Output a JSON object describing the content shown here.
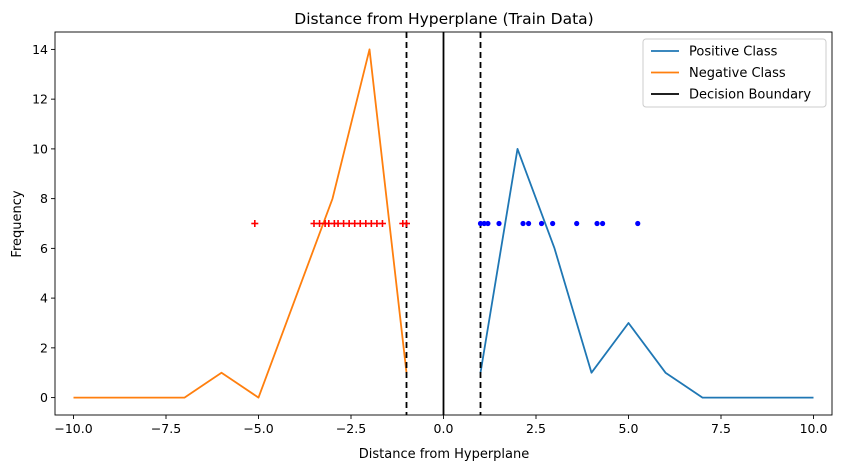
{
  "chart_data": {
    "type": "line",
    "title": "Distance from Hyperplane (Train Data)",
    "xlabel": "Distance from Hyperplane",
    "ylabel": "Frequency",
    "xlim": [
      -10.5,
      10.5
    ],
    "ylim": [
      -0.7,
      14.7
    ],
    "xticks": [
      -10.0,
      -7.5,
      -5.0,
      -2.5,
      0.0,
      2.5,
      5.0,
      7.5,
      10.0
    ],
    "xtick_labels": [
      "−10.0",
      "−7.5",
      "−5.0",
      "−2.5",
      "0.0",
      "2.5",
      "5.0",
      "7.5",
      "10.0"
    ],
    "yticks": [
      0,
      2,
      4,
      6,
      8,
      10,
      12,
      14
    ],
    "ytick_labels": [
      "0",
      "2",
      "4",
      "6",
      "8",
      "10",
      "12",
      "14"
    ],
    "grid": false,
    "legend_position": "top-right",
    "series": [
      {
        "name": "Positive Class",
        "color": "#1f77b4",
        "x": [
          1,
          2,
          3,
          4,
          5,
          6,
          7,
          8,
          9,
          10
        ],
        "y": [
          1,
          10,
          6,
          1,
          3,
          1,
          0,
          0,
          0,
          0
        ]
      },
      {
        "name": "Negative Class",
        "color": "#ff7f0e",
        "x": [
          -10,
          -9,
          -8,
          -7,
          -6,
          -5,
          -4,
          -3,
          -2,
          -1
        ],
        "y": [
          0,
          0,
          0,
          0,
          1,
          0,
          4,
          8,
          14,
          1
        ]
      }
    ],
    "decision_boundary": {
      "name": "Decision Boundary",
      "x": 0,
      "color": "#000000"
    },
    "margins": {
      "x": [
        -1,
        1
      ],
      "color": "#000000",
      "style": "dashed"
    },
    "points": [
      {
        "marker": "plus",
        "color": "#ff0000",
        "y": 7,
        "x": [
          -5.1,
          -3.5,
          -3.35,
          -3.2,
          -3.1,
          -2.95,
          -2.85,
          -2.7,
          -2.55,
          -2.4,
          -2.25,
          -2.1,
          -1.95,
          -1.8,
          -1.65,
          -1.1,
          -1.0
        ]
      },
      {
        "marker": "dot",
        "color": "#0000ff",
        "y": 7,
        "x": [
          1.0,
          1.1,
          1.2,
          1.5,
          2.15,
          2.3,
          2.65,
          2.95,
          3.6,
          4.15,
          4.3,
          5.25
        ]
      }
    ]
  }
}
